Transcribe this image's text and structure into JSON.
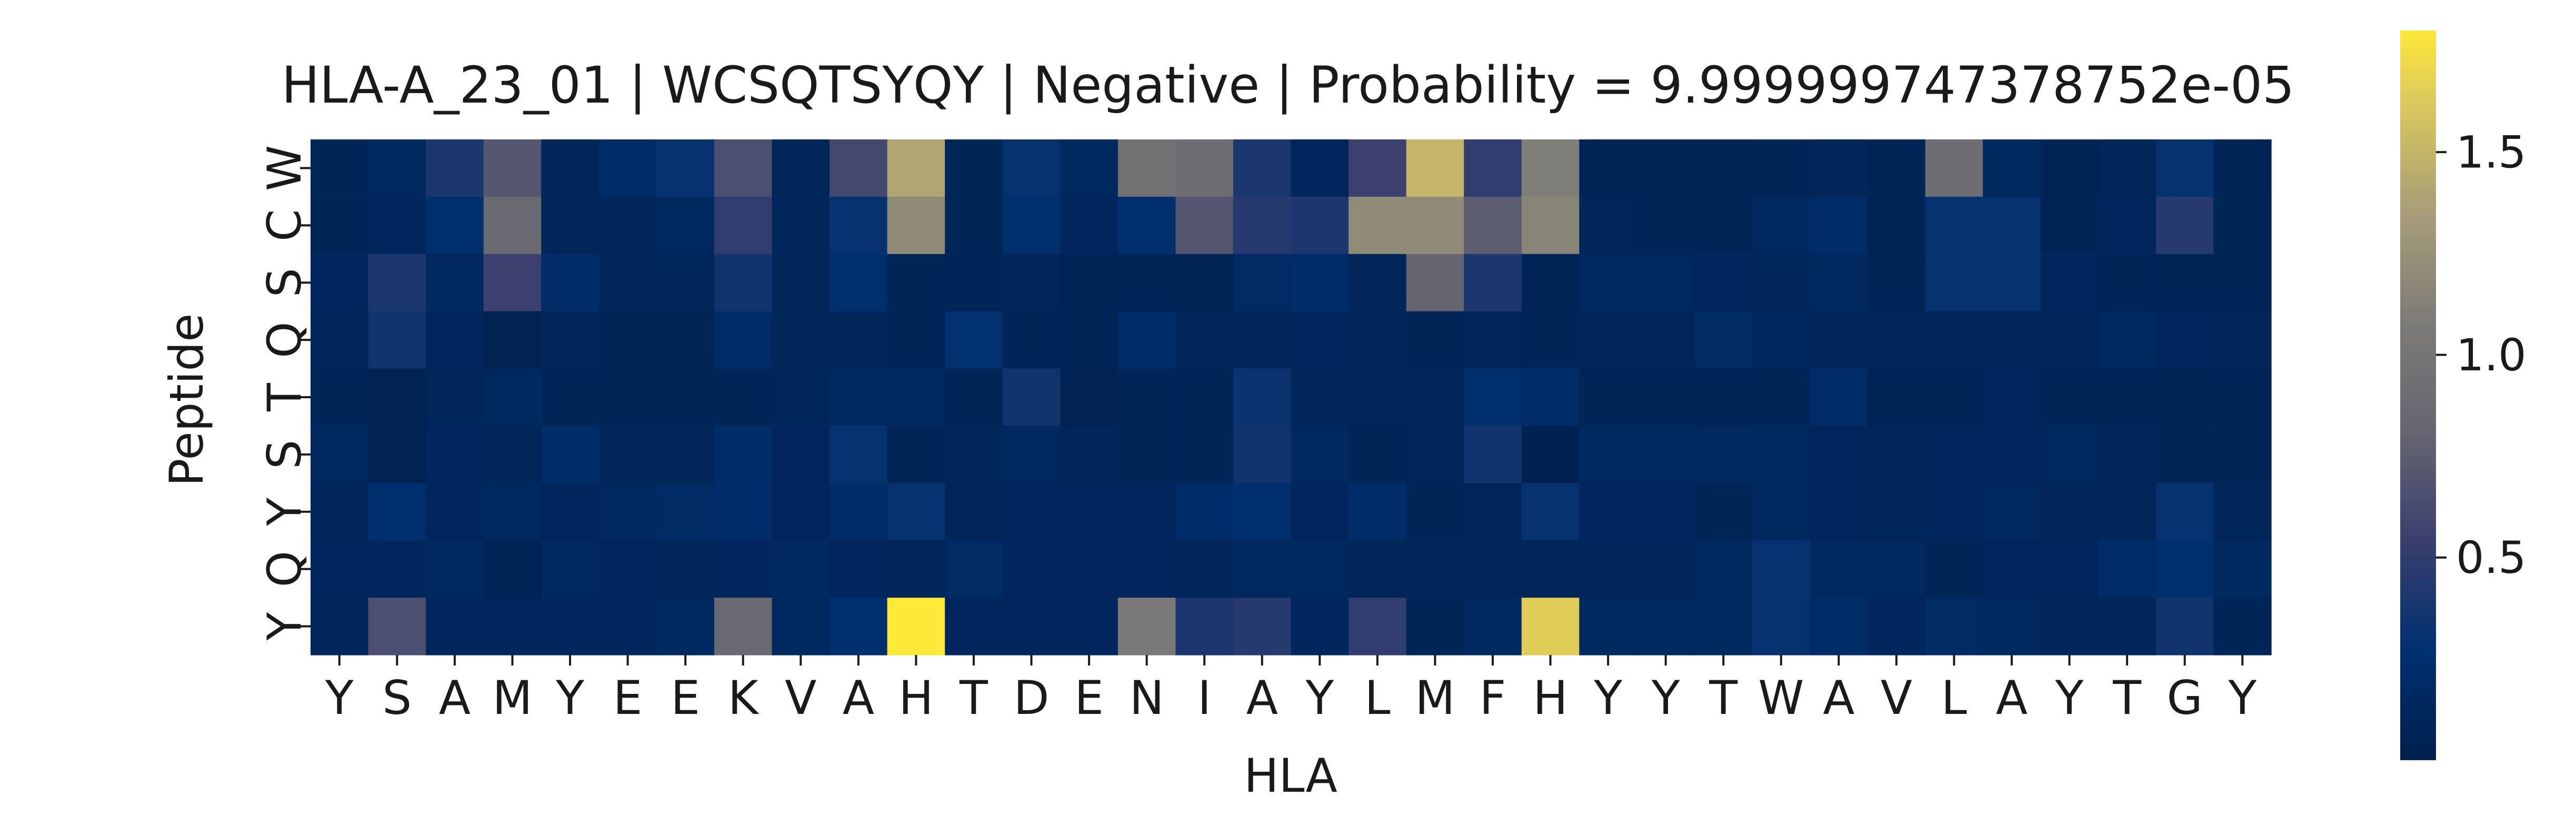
{
  "chart_data": {
    "type": "heatmap",
    "title": "HLA-A_23_01 | WCSQTSYQY | Negative | Probability = 9.999999747378752e-05",
    "xlabel": "HLA",
    "ylabel": "Peptide",
    "x_categories": [
      "Y",
      "S",
      "A",
      "M",
      "Y",
      "E",
      "E",
      "K",
      "V",
      "A",
      "H",
      "T",
      "D",
      "E",
      "N",
      "I",
      "A",
      "Y",
      "L",
      "M",
      "F",
      "H",
      "Y",
      "Y",
      "T",
      "W",
      "A",
      "V",
      "L",
      "A",
      "Y",
      "T",
      "G",
      "Y"
    ],
    "y_categories": [
      "W",
      "C",
      "S",
      "Q",
      "T",
      "S",
      "Y",
      "Q",
      "Y"
    ],
    "colormap": "cividis",
    "colorbar": {
      "min": 0.0,
      "max": 1.8,
      "ticks": [
        0.5,
        1.0,
        1.5
      ],
      "tick_labels": [
        "0.5",
        "1.0",
        "1.5"
      ]
    },
    "values": [
      [
        0.08,
        0.15,
        0.4,
        0.7,
        0.1,
        0.2,
        0.3,
        0.65,
        0.1,
        0.6,
        1.4,
        0.08,
        0.3,
        0.15,
        0.95,
        0.9,
        0.4,
        0.12,
        0.55,
        1.5,
        0.5,
        1.1,
        0.07,
        0.07,
        0.07,
        0.08,
        0.1,
        0.06,
        0.9,
        0.15,
        0.07,
        0.1,
        0.3,
        0.06
      ],
      [
        0.07,
        0.12,
        0.25,
        0.85,
        0.1,
        0.1,
        0.15,
        0.5,
        0.1,
        0.3,
        1.2,
        0.08,
        0.25,
        0.12,
        0.25,
        0.7,
        0.45,
        0.4,
        1.2,
        1.2,
        0.75,
        1.15,
        0.1,
        0.08,
        0.06,
        0.15,
        0.2,
        0.06,
        0.3,
        0.3,
        0.07,
        0.12,
        0.45,
        0.08
      ],
      [
        0.12,
        0.4,
        0.15,
        0.55,
        0.2,
        0.1,
        0.1,
        0.35,
        0.1,
        0.25,
        0.08,
        0.09,
        0.1,
        0.07,
        0.07,
        0.06,
        0.18,
        0.2,
        0.1,
        0.8,
        0.4,
        0.07,
        0.15,
        0.15,
        0.12,
        0.1,
        0.15,
        0.08,
        0.3,
        0.3,
        0.12,
        0.08,
        0.08,
        0.08
      ],
      [
        0.1,
        0.35,
        0.12,
        0.05,
        0.1,
        0.08,
        0.08,
        0.2,
        0.1,
        0.1,
        0.08,
        0.28,
        0.08,
        0.08,
        0.2,
        0.1,
        0.1,
        0.12,
        0.1,
        0.06,
        0.1,
        0.08,
        0.1,
        0.1,
        0.18,
        0.14,
        0.1,
        0.1,
        0.1,
        0.1,
        0.1,
        0.15,
        0.12,
        0.1
      ],
      [
        0.08,
        0.05,
        0.1,
        0.15,
        0.08,
        0.08,
        0.08,
        0.08,
        0.1,
        0.15,
        0.15,
        0.08,
        0.35,
        0.05,
        0.08,
        0.08,
        0.32,
        0.1,
        0.1,
        0.1,
        0.25,
        0.2,
        0.08,
        0.08,
        0.06,
        0.08,
        0.2,
        0.06,
        0.08,
        0.12,
        0.08,
        0.06,
        0.06,
        0.08
      ],
      [
        0.15,
        0.05,
        0.12,
        0.1,
        0.2,
        0.1,
        0.1,
        0.2,
        0.12,
        0.3,
        0.06,
        0.1,
        0.15,
        0.1,
        0.08,
        0.08,
        0.35,
        0.15,
        0.08,
        0.1,
        0.35,
        0.04,
        0.15,
        0.15,
        0.15,
        0.15,
        0.12,
        0.1,
        0.12,
        0.12,
        0.15,
        0.1,
        0.08,
        0.08
      ],
      [
        0.1,
        0.25,
        0.12,
        0.15,
        0.12,
        0.15,
        0.18,
        0.22,
        0.12,
        0.2,
        0.3,
        0.1,
        0.12,
        0.12,
        0.12,
        0.22,
        0.25,
        0.12,
        0.2,
        0.08,
        0.1,
        0.3,
        0.12,
        0.12,
        0.08,
        0.15,
        0.12,
        0.1,
        0.12,
        0.15,
        0.1,
        0.1,
        0.3,
        0.1
      ],
      [
        0.12,
        0.12,
        0.15,
        0.06,
        0.15,
        0.12,
        0.1,
        0.12,
        0.15,
        0.12,
        0.1,
        0.18,
        0.12,
        0.12,
        0.12,
        0.1,
        0.15,
        0.15,
        0.1,
        0.1,
        0.1,
        0.1,
        0.1,
        0.1,
        0.15,
        0.3,
        0.15,
        0.15,
        0.08,
        0.12,
        0.12,
        0.2,
        0.25,
        0.15
      ],
      [
        0.1,
        0.65,
        0.12,
        0.12,
        0.12,
        0.12,
        0.15,
        0.85,
        0.15,
        0.25,
        1.8,
        0.12,
        0.12,
        0.12,
        1.05,
        0.4,
        0.45,
        0.12,
        0.5,
        0.08,
        0.15,
        1.65,
        0.15,
        0.15,
        0.15,
        0.3,
        0.2,
        0.12,
        0.18,
        0.15,
        0.1,
        0.1,
        0.35,
        0.08
      ]
    ]
  }
}
